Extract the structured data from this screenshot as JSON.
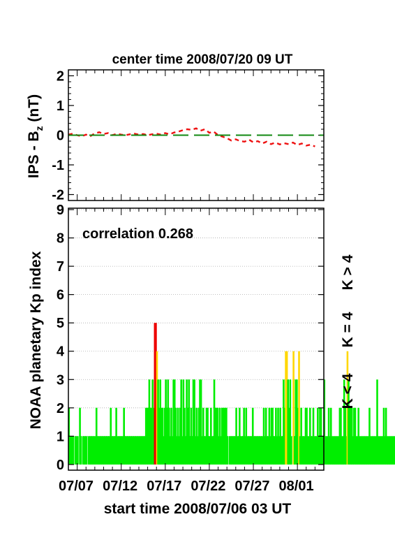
{
  "colors": {
    "green": "#00ee00",
    "yellow": "#ffd700",
    "red": "#ee0000",
    "dash_red": "#ee1111",
    "dash_green": "#118811"
  },
  "top_title": "center time 2008/07/20 09 UT",
  "x_title": "start time 2008/07/06 03 UT",
  "right_legend": [
    {
      "text": "K < 4",
      "color": "#00ee00"
    },
    {
      "text": "K = 4",
      "color": "#ffd700"
    },
    {
      "text": "K > 4",
      "color": "#ee0000"
    }
  ],
  "chart_data": [
    {
      "type": "line",
      "ylabel_main": "IPS - B",
      "ylabel_sub": "z",
      "ylabel_unit": " (nT)",
      "xlim": [
        0,
        29
      ],
      "ylim": [
        -2.2,
        2.2
      ],
      "yticks": [
        2,
        1,
        0,
        -1,
        -2
      ],
      "series": [
        {
          "style": "short-dash",
          "color": "#ee1111",
          "x": [
            0,
            0.5,
            1,
            1.5,
            2,
            2.5,
            3,
            3.5,
            4,
            4.5,
            5,
            5.5,
            6,
            6.5,
            7,
            7.5,
            8,
            8.5,
            9,
            9.5,
            10,
            10.5,
            11,
            11.5,
            12,
            12.5,
            13,
            13.5,
            14,
            14.5,
            15,
            15.5,
            16,
            16.5,
            17,
            17.5,
            18,
            18.5,
            19,
            19.5,
            20,
            20.5,
            21,
            21.5,
            22,
            22.5,
            23,
            23.5,
            24,
            24.5,
            25,
            25.5,
            26,
            26.5,
            27,
            27.5,
            28
          ],
          "y": [
            0.02,
            0.05,
            0.0,
            -0.04,
            0.02,
            -0.03,
            0.06,
            0.1,
            0.04,
            0.07,
            0.0,
            0.05,
            0.02,
            0.0,
            0.03,
            0.05,
            0.02,
            0.04,
            0.0,
            0.03,
            0.05,
            0.02,
            0.07,
            0.03,
            0.09,
            0.12,
            0.17,
            0.2,
            0.18,
            0.23,
            0.15,
            0.2,
            0.08,
            0.12,
            0.0,
            -0.05,
            -0.1,
            -0.18,
            -0.14,
            -0.2,
            -0.22,
            -0.15,
            -0.24,
            -0.2,
            -0.28,
            -0.22,
            -0.3,
            -0.25,
            -0.31,
            -0.27,
            -0.3,
            -0.25,
            -0.33,
            -0.28,
            -0.35,
            -0.32,
            -0.38
          ]
        },
        {
          "style": "long-dash",
          "color": "#118811",
          "x": [
            0,
            29
          ],
          "y": [
            0,
            0
          ]
        }
      ]
    },
    {
      "type": "bar",
      "ylabel": "NOAA planetary Kp index",
      "annotation": "correlation 0.268",
      "xlim": [
        0,
        29
      ],
      "ylim": [
        -0.2,
        9.05
      ],
      "yticks": [
        0,
        1,
        2,
        3,
        4,
        5,
        6,
        7,
        8,
        9
      ],
      "xticks": [
        "07/07",
        "07/12",
        "07/17",
        "07/22",
        "07/27",
        "08/01"
      ],
      "xtick_positions": [
        0.875,
        5.875,
        10.875,
        15.875,
        20.875,
        25.875
      ],
      "grid_y": true,
      "bar_width_days": 0.125,
      "kp_values": [
        2,
        1,
        1,
        1,
        1,
        0,
        1,
        1,
        1,
        0,
        2,
        1,
        0,
        1,
        1,
        1,
        1,
        0,
        1,
        1,
        1,
        1,
        1,
        1,
        1,
        2,
        1,
        1,
        1,
        1,
        1,
        1,
        1,
        1,
        1,
        1,
        1,
        1,
        2,
        1,
        1,
        1,
        1,
        2,
        1,
        1,
        1,
        1,
        1,
        1,
        2,
        1,
        1,
        1,
        1,
        1,
        1,
        1,
        1,
        1,
        1,
        1,
        1,
        1,
        1,
        1,
        1,
        1,
        1,
        1,
        2,
        2,
        2,
        3,
        2,
        2,
        3,
        2,
        5,
        5,
        4,
        3,
        2,
        3,
        2,
        2,
        1,
        2,
        3,
        2,
        3,
        2,
        1,
        2,
        1,
        3,
        3,
        2,
        1,
        2,
        1,
        2,
        3,
        1,
        3,
        2,
        1,
        3,
        2,
        3,
        1,
        2,
        1,
        3,
        3,
        1,
        2,
        1,
        2,
        3,
        3,
        1,
        2,
        1,
        1,
        2,
        2,
        1,
        1,
        2,
        1,
        1,
        3,
        2,
        2,
        2,
        1,
        2,
        1,
        2,
        2,
        2,
        2,
        2,
        1,
        0,
        1,
        1,
        1,
        1,
        1,
        1,
        2,
        1,
        1,
        2,
        1,
        1,
        1,
        2,
        1,
        2,
        1,
        1,
        1,
        1,
        1,
        2,
        1,
        1,
        1,
        1,
        1,
        1,
        1,
        1,
        1,
        2,
        1,
        2,
        1,
        1,
        2,
        1,
        2,
        2,
        1,
        1,
        2,
        1,
        2,
        1,
        2,
        1,
        1,
        3,
        2,
        4,
        4,
        3,
        2,
        3,
        1,
        0,
        4,
        1,
        3,
        3,
        2,
        4,
        1,
        2,
        1,
        1,
        1,
        2,
        2,
        1,
        1,
        2,
        1,
        1,
        2,
        1,
        1,
        1,
        2,
        1,
        2,
        2,
        1,
        1,
        3,
        1,
        1,
        1,
        2,
        1,
        2,
        1,
        1,
        1,
        1,
        1,
        1,
        1,
        2,
        2,
        1,
        1,
        3,
        2,
        1,
        4,
        3,
        2,
        2,
        2,
        1,
        2,
        2,
        1,
        1,
        2,
        1,
        1,
        1,
        1,
        1,
        1,
        1,
        1,
        1,
        2,
        1,
        1,
        1,
        1,
        1,
        1,
        3,
        1,
        1,
        1,
        1,
        1,
        2,
        1,
        2,
        1,
        1,
        1,
        1,
        1,
        1,
        1,
        1,
        1,
        1,
        2,
        1,
        1,
        1,
        1,
        1,
        1,
        1,
        1,
        1,
        2,
        1,
        1,
        1,
        1,
        1,
        1,
        1,
        1,
        2,
        1,
        1,
        1,
        1,
        1,
        1,
        1,
        1,
        1,
        1,
        1,
        1,
        1,
        1,
        1,
        1,
        2,
        1,
        1,
        1,
        1,
        1,
        1,
        1,
        1,
        1,
        1,
        1,
        1,
        0,
        1,
        1,
        1
      ]
    }
  ]
}
